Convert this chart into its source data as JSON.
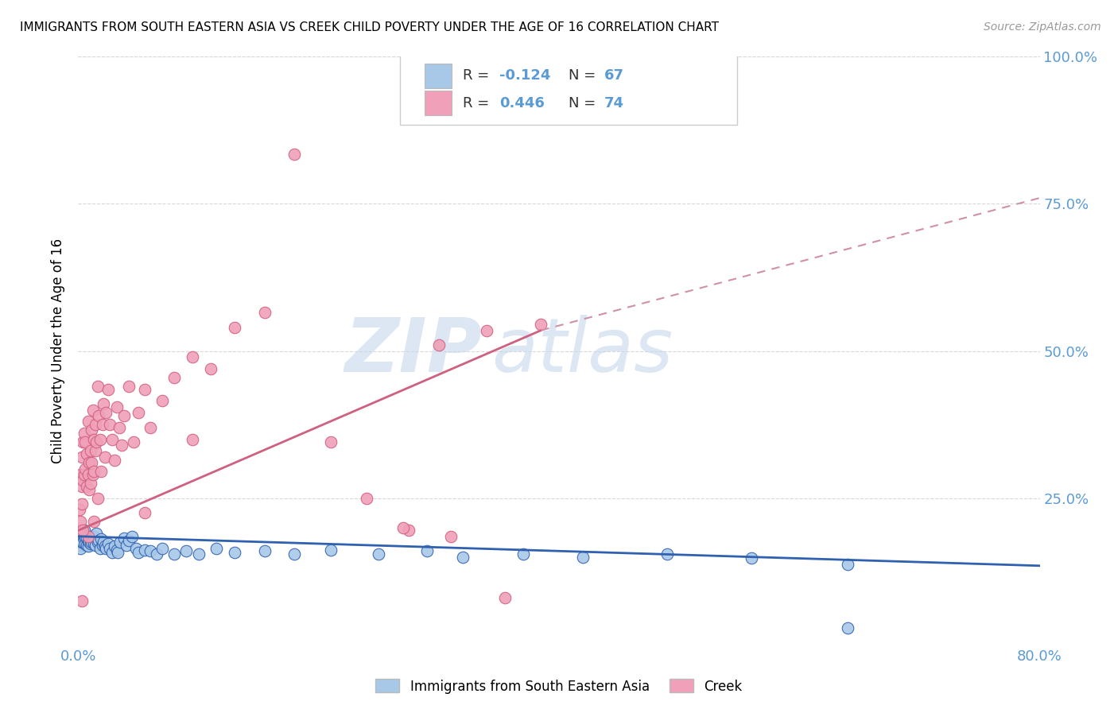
{
  "title": "IMMIGRANTS FROM SOUTH EASTERN ASIA VS CREEK CHILD POVERTY UNDER THE AGE OF 16 CORRELATION CHART",
  "source": "Source: ZipAtlas.com",
  "ylabel": "Child Poverty Under the Age of 16",
  "xlim": [
    0.0,
    0.8
  ],
  "ylim": [
    0.0,
    1.0
  ],
  "blue_color": "#A8C8E8",
  "pink_color": "#F0A0B8",
  "blue_line_color": "#3060B0",
  "pink_line_color": "#D06080",
  "pink_line_dashed_color": "#D090A8",
  "r_blue": "-0.124",
  "n_blue": "67",
  "r_pink": "0.446",
  "n_pink": "74",
  "watermark_zip": "ZIP",
  "watermark_atlas": "atlas",
  "background_color": "#FFFFFF",
  "grid_color": "#D8D8D8",
  "axis_tick_color": "#5B9BD5",
  "text_blue_color": "#5B9BD5",
  "legend_label_blue": "Immigrants from South Eastern Asia",
  "legend_label_pink": "Creek",
  "blue_line_start_y": 0.185,
  "blue_line_end_y": 0.135,
  "pink_line_start_y": 0.195,
  "pink_line_solid_end_x": 0.385,
  "pink_line_solid_end_y": 0.535,
  "pink_line_dashed_end_x": 0.8,
  "pink_line_dashed_end_y": 0.76,
  "blue_scatter_x": [
    0.001,
    0.001,
    0.002,
    0.002,
    0.003,
    0.003,
    0.004,
    0.004,
    0.005,
    0.005,
    0.006,
    0.006,
    0.007,
    0.007,
    0.008,
    0.008,
    0.009,
    0.01,
    0.01,
    0.011,
    0.012,
    0.013,
    0.013,
    0.014,
    0.015,
    0.016,
    0.017,
    0.018,
    0.019,
    0.02,
    0.021,
    0.022,
    0.023,
    0.025,
    0.026,
    0.028,
    0.03,
    0.032,
    0.033,
    0.035,
    0.038,
    0.04,
    0.042,
    0.045,
    0.048,
    0.05,
    0.055,
    0.06,
    0.065,
    0.07,
    0.08,
    0.09,
    0.1,
    0.115,
    0.13,
    0.155,
    0.18,
    0.21,
    0.25,
    0.29,
    0.32,
    0.37,
    0.42,
    0.49,
    0.56,
    0.64,
    0.64
  ],
  "blue_scatter_y": [
    0.17,
    0.185,
    0.165,
    0.19,
    0.175,
    0.185,
    0.175,
    0.19,
    0.18,
    0.195,
    0.172,
    0.185,
    0.17,
    0.182,
    0.168,
    0.178,
    0.175,
    0.172,
    0.185,
    0.175,
    0.18,
    0.172,
    0.185,
    0.17,
    0.19,
    0.175,
    0.178,
    0.165,
    0.18,
    0.17,
    0.175,
    0.168,
    0.165,
    0.172,
    0.165,
    0.158,
    0.168,
    0.162,
    0.158,
    0.175,
    0.182,
    0.17,
    0.178,
    0.185,
    0.165,
    0.158,
    0.162,
    0.16,
    0.155,
    0.165,
    0.155,
    0.16,
    0.155,
    0.165,
    0.158,
    0.16,
    0.155,
    0.162,
    0.155,
    0.16,
    0.15,
    0.155,
    0.15,
    0.155,
    0.148,
    0.138,
    0.03
  ],
  "pink_scatter_x": [
    0.001,
    0.001,
    0.002,
    0.002,
    0.003,
    0.003,
    0.003,
    0.004,
    0.004,
    0.005,
    0.005,
    0.006,
    0.006,
    0.007,
    0.007,
    0.008,
    0.008,
    0.009,
    0.009,
    0.01,
    0.01,
    0.011,
    0.011,
    0.012,
    0.012,
    0.013,
    0.013,
    0.014,
    0.014,
    0.015,
    0.016,
    0.016,
    0.017,
    0.018,
    0.019,
    0.02,
    0.021,
    0.022,
    0.023,
    0.025,
    0.026,
    0.028,
    0.03,
    0.032,
    0.034,
    0.036,
    0.038,
    0.042,
    0.046,
    0.05,
    0.055,
    0.06,
    0.07,
    0.08,
    0.095,
    0.11,
    0.13,
    0.155,
    0.18,
    0.21,
    0.24,
    0.275,
    0.31,
    0.355,
    0.3,
    0.34,
    0.385,
    0.27,
    0.095,
    0.055,
    0.013,
    0.008,
    0.004,
    0.003
  ],
  "pink_scatter_y": [
    0.195,
    0.23,
    0.21,
    0.29,
    0.24,
    0.27,
    0.32,
    0.28,
    0.345,
    0.29,
    0.36,
    0.3,
    0.345,
    0.27,
    0.325,
    0.38,
    0.29,
    0.265,
    0.31,
    0.33,
    0.275,
    0.31,
    0.365,
    0.29,
    0.4,
    0.35,
    0.295,
    0.375,
    0.33,
    0.345,
    0.25,
    0.44,
    0.39,
    0.35,
    0.295,
    0.375,
    0.41,
    0.32,
    0.395,
    0.435,
    0.375,
    0.35,
    0.315,
    0.405,
    0.37,
    0.34,
    0.39,
    0.44,
    0.345,
    0.395,
    0.435,
    0.37,
    0.415,
    0.455,
    0.49,
    0.47,
    0.54,
    0.565,
    0.835,
    0.345,
    0.25,
    0.195,
    0.185,
    0.08,
    0.51,
    0.535,
    0.545,
    0.2,
    0.35,
    0.225,
    0.21,
    0.185,
    0.195,
    0.075
  ]
}
